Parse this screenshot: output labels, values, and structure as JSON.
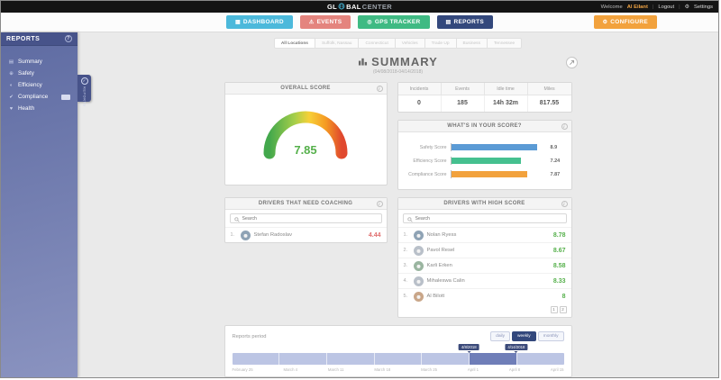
{
  "topbar": {
    "logo_left": "GL",
    "logo_mid": "BAL",
    "logo_right": "CENTER",
    "welcome_prefix": "Welcome",
    "username": "Al Eilant",
    "logout": "Logout",
    "settings": "Settings"
  },
  "nav": {
    "items": [
      {
        "label": "DASHBOARD",
        "color": "#4cb9db"
      },
      {
        "label": "EVENTS",
        "color": "#e4847e"
      },
      {
        "label": "GPS TRACKER",
        "color": "#3fba83"
      },
      {
        "label": "REPORTS",
        "color": "#33487c"
      }
    ],
    "configure_label": "CONFIGURE",
    "configure_color": "#f2a23d"
  },
  "sidebar": {
    "title": "REPORTS",
    "help": "?",
    "flag_label": "REPORTS",
    "items": [
      {
        "label": "Summary"
      },
      {
        "label": "Safety"
      },
      {
        "label": "Efficiency"
      },
      {
        "label": "Compliance"
      },
      {
        "label": "Health"
      }
    ]
  },
  "tabs": {
    "items": [
      "All Locations",
      "Suffolk, Nassau",
      "Connecticut",
      "Vehicles",
      "Trade Up",
      "Business",
      "Tennessee"
    ],
    "active": "All Locations"
  },
  "summary": {
    "title": "SUMMARY",
    "subtitle": "(04/08/2018-04/14/2018)"
  },
  "overall": {
    "title": "OVERALL SCORE",
    "value": "7.85"
  },
  "stats": {
    "columns": [
      {
        "label": "Incidents",
        "value": "0"
      },
      {
        "label": "Events",
        "value": "185"
      },
      {
        "label": "Idle time",
        "value": "14h 32m"
      },
      {
        "label": "Miles",
        "value": "817.55"
      }
    ]
  },
  "score_breakdown": {
    "title": "WHAT'S IN YOUR SCORE?",
    "max": 10,
    "bars": [
      {
        "label": "Safety Score",
        "value": 8.9,
        "display": "8.9",
        "color": "#5b9bd5"
      },
      {
        "label": "Efficiency Score",
        "value": 7.24,
        "display": "7.24",
        "color": "#45c08f"
      },
      {
        "label": "Compliance Score",
        "value": 7.87,
        "display": "7.87",
        "color": "#f2a23d"
      }
    ]
  },
  "coaching": {
    "title": "DRIVERS THAT NEED COACHING",
    "search_placeholder": "Search",
    "rows": [
      {
        "rank": "1.",
        "name": "Stefan Radoslav",
        "score": "4.44"
      }
    ]
  },
  "high_score": {
    "title": "DRIVERS WITH HIGH SCORE",
    "search_placeholder": "Search",
    "rows": [
      {
        "rank": "1.",
        "name": "Nolan Ryess",
        "score": "8.78"
      },
      {
        "rank": "2.",
        "name": "Pavol Resel",
        "score": "8.67"
      },
      {
        "rank": "3.",
        "name": "Karli Erken",
        "score": "8.58"
      },
      {
        "rank": "4.",
        "name": "Mihaleswa Calin",
        "score": "8.33"
      },
      {
        "rank": "5.",
        "name": "Al Bilott",
        "score": "8"
      }
    ],
    "pagination": {
      "page1": "1",
      "page2": "2"
    }
  },
  "period": {
    "title": "Reports period",
    "buttons": [
      {
        "label": "daily"
      },
      {
        "label": "weekly"
      },
      {
        "label": "monthly"
      }
    ],
    "active_button": "weekly",
    "tooltips": [
      "4/8/2018",
      "4/14/2018"
    ],
    "selected_range": "04/08/2018 - 04/14/2018",
    "axis": [
      "February 25",
      "March 4",
      "March 11",
      "March 18",
      "March 25",
      "April 1",
      "April 8",
      "April 15"
    ]
  }
}
